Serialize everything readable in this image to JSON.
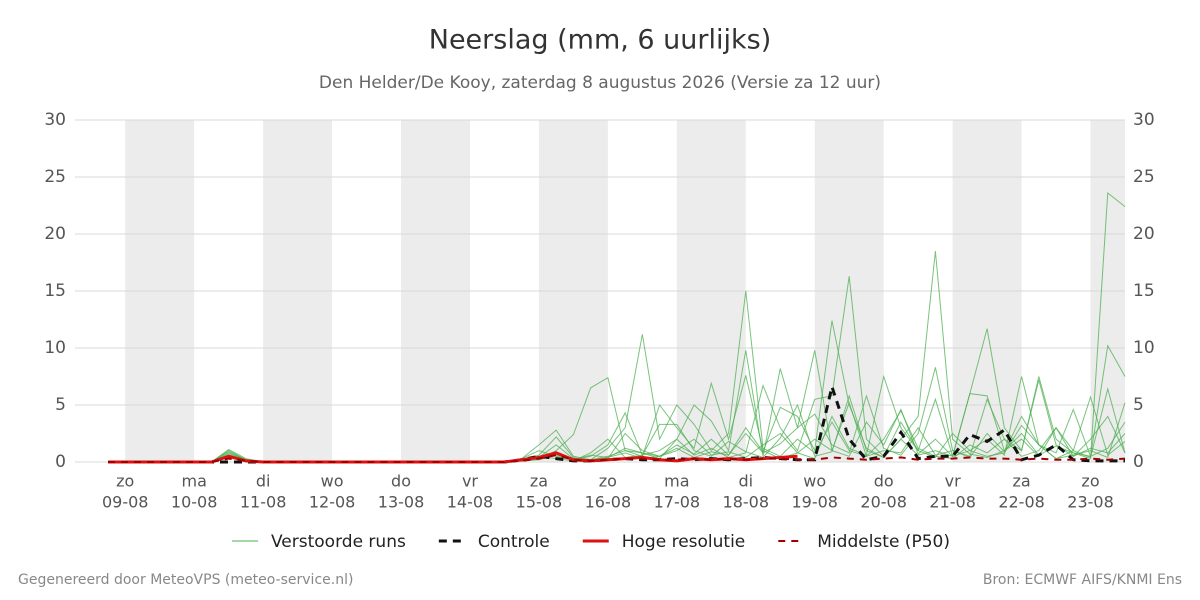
{
  "chart_data": {
    "type": "line",
    "title": "Neerslag (mm, 6 uurlijks)",
    "subtitle": "Den Helder/De Kooy, zaterdag  8 augustus 2026 (Versie za 12 uur)",
    "footer_left": "Gegenereerd door MeteoVPS (meteo-service.nl)",
    "footer_right": "Bron: ECMWF AIFS/KNMI Ens",
    "categories": [
      null,
      "zo",
      null,
      null,
      null,
      "ma",
      null,
      null,
      null,
      "di",
      null,
      null,
      null,
      "wo",
      null,
      null,
      null,
      "do",
      null,
      null,
      null,
      "vr",
      null,
      null,
      null,
      "za",
      null,
      null,
      null,
      "zo",
      null,
      null,
      null,
      "ma",
      null,
      null,
      null,
      "di",
      null,
      null,
      null,
      "wo",
      null,
      null,
      null,
      "do",
      null,
      null,
      null,
      "vr",
      null,
      null,
      null,
      "za",
      null,
      null,
      null,
      "zo",
      null,
      null
    ],
    "category_dates": [
      null,
      "09-08",
      null,
      null,
      null,
      "10-08",
      null,
      null,
      null,
      "11-08",
      null,
      null,
      null,
      "12-08",
      null,
      null,
      null,
      "13-08",
      null,
      null,
      null,
      "14-08",
      null,
      null,
      null,
      "15-08",
      null,
      null,
      null,
      "16-08",
      null,
      null,
      null,
      "17-08",
      null,
      null,
      null,
      "18-08",
      null,
      null,
      null,
      "19-08",
      null,
      null,
      null,
      "20-08",
      null,
      null,
      null,
      "21-08",
      null,
      null,
      null,
      "22-08",
      null,
      null,
      null,
      "23-08",
      null,
      null
    ],
    "ylim": [
      0,
      30
    ],
    "yticks": [
      0,
      5,
      10,
      15,
      20,
      25,
      30
    ],
    "grid": true,
    "members": {
      "name": "Verstoorde runs",
      "color": "#4caf50",
      "runs": [
        [
          0,
          0,
          0,
          0,
          0,
          0,
          0,
          1.1,
          0.3,
          0,
          0,
          0,
          0,
          0,
          0,
          0,
          0,
          0,
          0,
          0,
          0,
          0,
          0,
          0,
          0.3,
          1.5,
          2.8,
          0.5,
          0.2,
          1.2,
          3.0,
          11.2,
          2.0,
          5.0,
          3.3,
          1.0,
          2.5,
          15.0,
          1.2,
          0.5,
          2.0,
          0.8,
          3.5,
          1.0,
          0.5,
          2.0,
          4.5,
          1.2,
          0.5,
          0.3,
          1.5,
          0.8,
          2.0,
          0.5,
          1.0,
          3.0,
          0.5,
          1.2,
          0.8,
          2.5
        ],
        [
          0,
          0,
          0,
          0,
          0,
          0,
          0,
          0.9,
          0.2,
          0,
          0,
          0,
          0,
          0,
          0,
          0,
          0,
          0,
          0,
          0,
          0,
          0,
          0,
          0,
          0.2,
          0.5,
          0.3,
          0.1,
          0.8,
          2.0,
          0.4,
          0.6,
          3.3,
          3.3,
          1.0,
          0.5,
          1.8,
          0.9,
          0.4,
          2.1,
          5.0,
          0.5,
          0.9,
          5.8,
          1.0,
          0.4,
          2.0,
          4.0,
          18.5,
          2.0,
          0.7,
          0.4,
          1.0,
          2.5,
          0.6,
          1.4,
          0.8,
          0.3,
          23.6,
          22.4
        ],
        [
          0,
          0,
          0,
          0,
          0,
          0,
          0,
          0.6,
          0.2,
          0,
          0,
          0,
          0,
          0,
          0,
          0,
          0,
          0,
          0,
          0,
          0,
          0,
          0,
          0,
          0.1,
          0.4,
          1.5,
          0.3,
          0.2,
          0.5,
          1.0,
          0.8,
          0.3,
          2.0,
          0.6,
          1.2,
          0.4,
          0.8,
          6.7,
          3.0,
          1.0,
          5.5,
          5.8,
          16.3,
          2.0,
          0.5,
          3.5,
          1.0,
          0.4,
          2.5,
          1.0,
          0.5,
          0.8,
          3.2,
          1.5,
          0.3,
          0.6,
          1.0,
          0.4,
          5.2
        ],
        [
          0,
          0,
          0,
          0,
          0,
          0,
          0,
          0.8,
          0.2,
          0,
          0,
          0,
          0,
          0,
          0,
          0,
          0,
          0,
          0,
          0,
          0,
          0,
          0,
          0,
          0.2,
          0.6,
          2.2,
          0.4,
          0.1,
          0.3,
          2.5,
          1.0,
          0.5,
          1.5,
          0.7,
          2.0,
          0.6,
          3.0,
          0.9,
          4.8,
          4.0,
          1.0,
          12.4,
          5.0,
          1.2,
          0.4,
          2.0,
          0.6,
          1.0,
          0.5,
          6.0,
          11.7,
          3.0,
          1.0,
          7.5,
          2.0,
          0.8,
          0.5,
          1.2,
          3.5
        ],
        [
          0,
          0,
          0,
          0,
          0,
          0,
          0,
          0.7,
          0.2,
          0,
          0,
          0,
          0,
          0,
          0,
          0,
          0,
          0,
          0,
          0,
          0,
          0,
          0,
          0,
          0.1,
          0.3,
          0.8,
          0.2,
          0.5,
          1.5,
          4.3,
          0.6,
          1.0,
          2.0,
          5.0,
          3.6,
          1.0,
          9.8,
          0.5,
          8.2,
          3.0,
          4.2,
          1.5,
          0.8,
          5.8,
          1.2,
          0.6,
          2.5,
          8.3,
          1.0,
          0.5,
          5.5,
          2.0,
          1.0,
          7.2,
          1.5,
          0.5,
          2.0,
          4.0,
          0.8
        ],
        [
          0,
          0,
          0,
          0,
          0,
          0,
          0,
          0.5,
          0.2,
          0,
          0,
          0,
          0,
          0,
          0,
          0,
          0,
          0,
          0,
          0,
          0,
          0,
          0,
          0,
          0.1,
          0.2,
          1.0,
          2.4,
          6.5,
          7.4,
          1.0,
          0.5,
          5.0,
          3.0,
          1.2,
          6.9,
          2.0,
          7.6,
          1.0,
          0.3,
          0.8,
          2.0,
          1.0,
          5.2,
          0.5,
          1.0,
          0.8,
          3.0,
          0.6,
          1.0,
          0.4,
          2.5,
          0.9,
          4.0,
          1.5,
          0.3,
          1.0,
          5.7,
          0.6,
          1.8
        ],
        [
          0,
          0,
          0,
          0,
          0,
          0,
          0,
          1.0,
          0.2,
          0,
          0,
          0,
          0,
          0,
          0,
          0,
          0,
          0,
          0,
          0,
          0,
          0,
          0,
          0,
          0.3,
          1.0,
          0.5,
          0.2,
          0.6,
          0.4,
          1.2,
          0.8,
          0.5,
          1.0,
          2.0,
          0.6,
          0.9,
          0.4,
          1.5,
          2.5,
          0.8,
          0.3,
          4.0,
          1.2,
          0.6,
          7.5,
          3.0,
          1.0,
          5.5,
          0.5,
          1.0,
          2.0,
          0.6,
          7.5,
          1.5,
          0.8,
          4.6,
          0.5,
          10.2,
          7.5
        ],
        [
          0,
          0,
          0,
          0,
          0,
          0,
          0,
          0.4,
          0.1,
          0,
          0,
          0,
          0,
          0,
          0,
          0,
          0,
          0,
          0,
          0,
          0,
          0,
          0,
          0,
          0.1,
          0.2,
          0.6,
          0.3,
          0.1,
          0.4,
          0.8,
          0.3,
          0.5,
          1.2,
          0.4,
          0.9,
          0.6,
          2.5,
          0.8,
          1.6,
          3.0,
          9.8,
          1.0,
          0.5,
          3.5,
          1.5,
          4.6,
          0.7,
          2.0,
          0.5,
          6.0,
          5.8,
          1.0,
          2.0,
          0.5,
          3.0,
          1.0,
          0.4,
          6.4,
          0.8
        ]
      ]
    },
    "series": [
      {
        "name": "Controle",
        "color": "#111111",
        "dash": "8,6",
        "width": 3,
        "values": [
          0,
          0,
          0,
          0,
          0,
          0,
          0,
          0,
          0,
          0,
          0,
          0,
          0,
          0,
          0,
          0,
          0,
          0,
          0,
          0,
          0,
          0,
          0,
          0,
          0.2,
          0.5,
          0.3,
          0.1,
          0.1,
          0.2,
          0.3,
          0.2,
          0.2,
          0.3,
          0.2,
          0.3,
          0.2,
          0.3,
          0.4,
          0.3,
          0.2,
          0.2,
          6.6,
          2.0,
          0.2,
          0.5,
          2.6,
          0.3,
          0.5,
          0.5,
          2.4,
          1.8,
          2.8,
          0.2,
          0.6,
          1.5,
          0.2,
          0.1,
          0.1,
          0.1
        ]
      },
      {
        "name": "Hoge resolutie",
        "color": "#dd1111",
        "dash": "none",
        "width": 3,
        "values": [
          0,
          0,
          0,
          0,
          0,
          0,
          0,
          0.5,
          0.1,
          0,
          0,
          0,
          0,
          0,
          0,
          0,
          0,
          0,
          0,
          0,
          0,
          0,
          0,
          0,
          0.2,
          0.4,
          0.8,
          0.2,
          0.1,
          0.2,
          0.3,
          0.4,
          0.2,
          0.1,
          0.3,
          0.2,
          0.3,
          0.2,
          0.3,
          0.4,
          0.5,
          null,
          null,
          null,
          null,
          null,
          null,
          null,
          null,
          null,
          null,
          null,
          null,
          null,
          null,
          null,
          null,
          null,
          null,
          null
        ]
      },
      {
        "name": "Middelste (P50)",
        "color": "#a00000",
        "dash": "7,6",
        "width": 2,
        "values": [
          0,
          0,
          0,
          0,
          0,
          0,
          0,
          0.3,
          0.1,
          0,
          0,
          0,
          0,
          0,
          0,
          0,
          0,
          0,
          0,
          0,
          0,
          0,
          0,
          0,
          0.1,
          0.3,
          0.6,
          0.2,
          0.1,
          0.2,
          0.3,
          0.3,
          0.2,
          0.2,
          0.3,
          0.2,
          0.3,
          0.2,
          0.3,
          0.3,
          0.2,
          0.2,
          0.4,
          0.3,
          0.2,
          0.3,
          0.4,
          0.2,
          0.3,
          0.3,
          0.4,
          0.3,
          0.3,
          0.2,
          0.3,
          0.2,
          0.2,
          0.3,
          0.2,
          0.3
        ]
      }
    ]
  }
}
